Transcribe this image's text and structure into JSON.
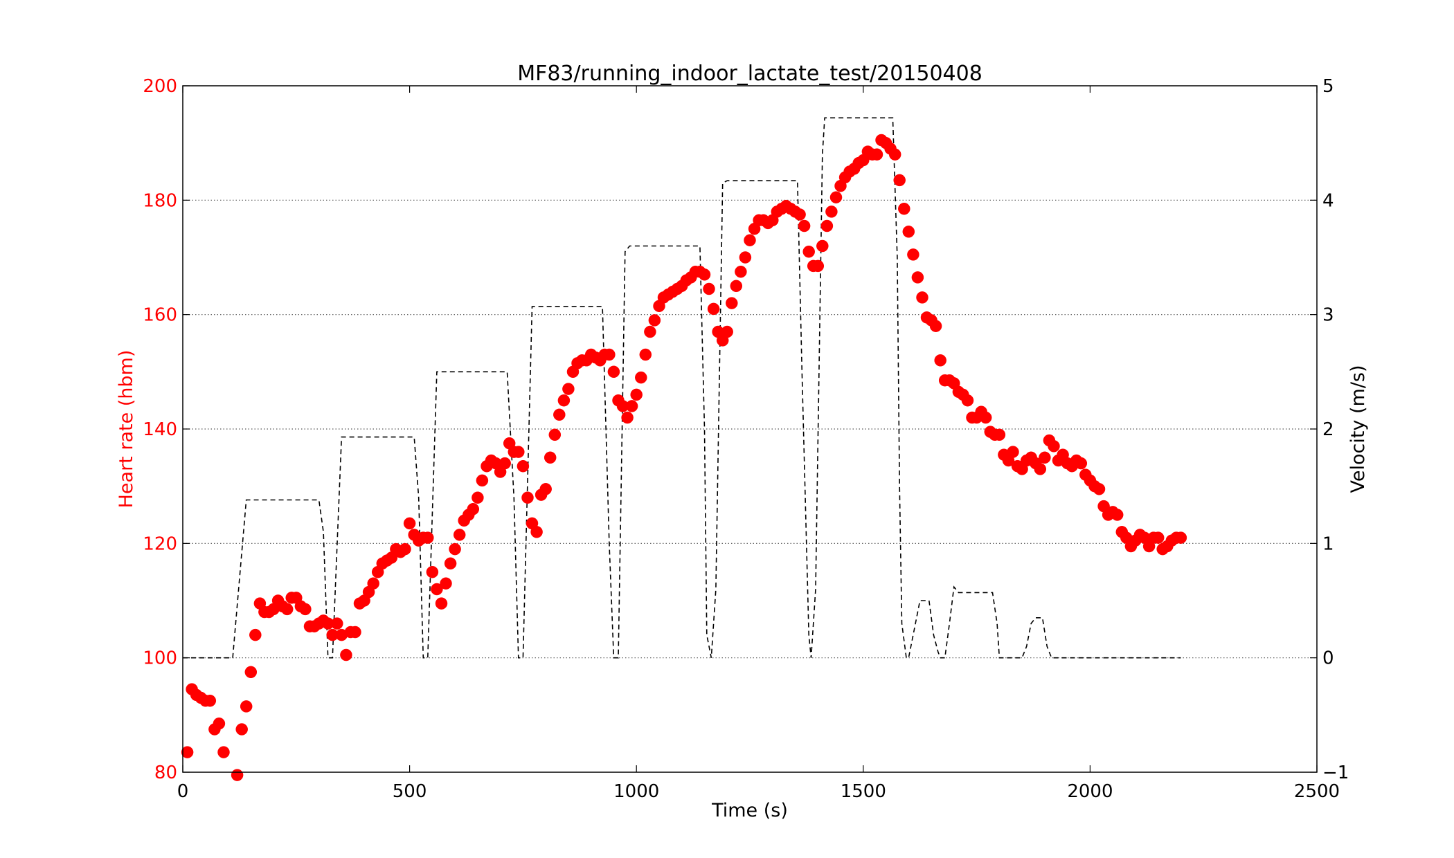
{
  "colors": {
    "heart_rate": "#ff0000",
    "velocity": "#000000",
    "grid": "#555555",
    "axis": "#000000",
    "background": "#ffffff"
  },
  "chart_data": {
    "type": "scatter",
    "title": "MF83/running_indoor_lactate_test/20150408",
    "xlabel": "Time (s)",
    "ylabel": "Heart rate (hbm)",
    "y2label": "Velocity (m/s)",
    "xlim": [
      0,
      2500
    ],
    "ylim": [
      80,
      200
    ],
    "y2lim": [
      -1,
      5
    ],
    "x_ticks": [
      {
        "value": 0,
        "label": "0"
      },
      {
        "value": 500,
        "label": "500"
      },
      {
        "value": 1000,
        "label": "1000"
      },
      {
        "value": 1500,
        "label": "1500"
      },
      {
        "value": 2000,
        "label": "2000"
      },
      {
        "value": 2500,
        "label": "2500"
      }
    ],
    "y_ticks": [
      {
        "value": 80,
        "label": "80"
      },
      {
        "value": 100,
        "label": "100"
      },
      {
        "value": 120,
        "label": "120"
      },
      {
        "value": 140,
        "label": "140"
      },
      {
        "value": 160,
        "label": "160"
      },
      {
        "value": 180,
        "label": "180"
      },
      {
        "value": 200,
        "label": "200"
      }
    ],
    "y2_ticks": [
      {
        "value": -1,
        "label": "−1"
      },
      {
        "value": 0,
        "label": "0"
      },
      {
        "value": 1,
        "label": "1"
      },
      {
        "value": 2,
        "label": "2"
      },
      {
        "value": 3,
        "label": "3"
      },
      {
        "value": 4,
        "label": "4"
      },
      {
        "value": 5,
        "label": "5"
      }
    ],
    "grid": "horizontal dotted",
    "series": [
      {
        "axis": "left",
        "style": "red circle markers",
        "points": [
          [
            10,
            83.5
          ],
          [
            20,
            94.5
          ],
          [
            30,
            93.5
          ],
          [
            40,
            93
          ],
          [
            50,
            92.5
          ],
          [
            60,
            92.5
          ],
          [
            70,
            87.5
          ],
          [
            80,
            88.5
          ],
          [
            90,
            83.5
          ],
          [
            120,
            79.5
          ],
          [
            130,
            87.5
          ],
          [
            140,
            91.5
          ],
          [
            150,
            97.5
          ],
          [
            160,
            104
          ],
          [
            170,
            109.5
          ],
          [
            180,
            108
          ],
          [
            190,
            108
          ],
          [
            200,
            108.5
          ],
          [
            210,
            110
          ],
          [
            220,
            109
          ],
          [
            230,
            108.5
          ],
          [
            240,
            110.5
          ],
          [
            250,
            110.5
          ],
          [
            260,
            109
          ],
          [
            270,
            108.5
          ],
          [
            280,
            105.5
          ],
          [
            290,
            105.5
          ],
          [
            300,
            106
          ],
          [
            310,
            106.5
          ],
          [
            320,
            106
          ],
          [
            330,
            104
          ],
          [
            340,
            106
          ],
          [
            350,
            104
          ],
          [
            360,
            100.5
          ],
          [
            370,
            104.5
          ],
          [
            380,
            104.5
          ],
          [
            390,
            109.5
          ],
          [
            400,
            110
          ],
          [
            410,
            111.5
          ],
          [
            420,
            113
          ],
          [
            430,
            115
          ],
          [
            440,
            116.5
          ],
          [
            450,
            117
          ],
          [
            460,
            117.5
          ],
          [
            470,
            119
          ],
          [
            480,
            118.5
          ],
          [
            490,
            119
          ],
          [
            500,
            123.5
          ],
          [
            510,
            121.5
          ],
          [
            520,
            120.5
          ],
          [
            530,
            121
          ],
          [
            540,
            121
          ],
          [
            550,
            115
          ],
          [
            560,
            112
          ],
          [
            570,
            109.5
          ],
          [
            580,
            113
          ],
          [
            590,
            116.5
          ],
          [
            600,
            119
          ],
          [
            610,
            121.5
          ],
          [
            620,
            124
          ],
          [
            630,
            125
          ],
          [
            640,
            126
          ],
          [
            650,
            128
          ],
          [
            660,
            131
          ],
          [
            670,
            133.5
          ],
          [
            680,
            134.5
          ],
          [
            690,
            134
          ],
          [
            700,
            132.5
          ],
          [
            710,
            134
          ],
          [
            720,
            137.5
          ],
          [
            730,
            136
          ],
          [
            740,
            136
          ],
          [
            750,
            133.5
          ],
          [
            760,
            128
          ],
          [
            770,
            123.5
          ],
          [
            780,
            122
          ],
          [
            790,
            128.5
          ],
          [
            800,
            129.5
          ],
          [
            810,
            135
          ],
          [
            820,
            139
          ],
          [
            830,
            142.5
          ],
          [
            840,
            145
          ],
          [
            850,
            147
          ],
          [
            860,
            150
          ],
          [
            870,
            151.5
          ],
          [
            880,
            152
          ],
          [
            890,
            152
          ],
          [
            900,
            153
          ],
          [
            910,
            152.5
          ],
          [
            920,
            152
          ],
          [
            930,
            153
          ],
          [
            940,
            153
          ],
          [
            950,
            150
          ],
          [
            960,
            145
          ],
          [
            970,
            144
          ],
          [
            980,
            142
          ],
          [
            990,
            144
          ],
          [
            1000,
            146
          ],
          [
            1010,
            149
          ],
          [
            1020,
            153
          ],
          [
            1030,
            157
          ],
          [
            1040,
            159
          ],
          [
            1050,
            161.5
          ],
          [
            1060,
            163
          ],
          [
            1070,
            163.5
          ],
          [
            1080,
            164
          ],
          [
            1090,
            164.5
          ],
          [
            1100,
            165
          ],
          [
            1110,
            166
          ],
          [
            1120,
            166.5
          ],
          [
            1130,
            167.5
          ],
          [
            1140,
            167.5
          ],
          [
            1150,
            167
          ],
          [
            1160,
            164.5
          ],
          [
            1170,
            161
          ],
          [
            1180,
            157
          ],
          [
            1190,
            155.5
          ],
          [
            1200,
            157
          ],
          [
            1210,
            162
          ],
          [
            1220,
            165
          ],
          [
            1230,
            167.5
          ],
          [
            1240,
            170
          ],
          [
            1250,
            173
          ],
          [
            1260,
            175
          ],
          [
            1270,
            176.5
          ],
          [
            1280,
            176.5
          ],
          [
            1290,
            176
          ],
          [
            1300,
            176.5
          ],
          [
            1310,
            178
          ],
          [
            1320,
            178.5
          ],
          [
            1330,
            179
          ],
          [
            1340,
            178.5
          ],
          [
            1350,
            178
          ],
          [
            1360,
            177.5
          ],
          [
            1370,
            175.5
          ],
          [
            1380,
            171
          ],
          [
            1390,
            168.5
          ],
          [
            1400,
            168.5
          ],
          [
            1410,
            172
          ],
          [
            1420,
            175.5
          ],
          [
            1430,
            178
          ],
          [
            1440,
            180.5
          ],
          [
            1450,
            182.5
          ],
          [
            1460,
            184
          ],
          [
            1470,
            185
          ],
          [
            1480,
            185.5
          ],
          [
            1490,
            186.5
          ],
          [
            1500,
            187
          ],
          [
            1510,
            188.5
          ],
          [
            1520,
            188
          ],
          [
            1530,
            188
          ],
          [
            1540,
            190.5
          ],
          [
            1550,
            190
          ],
          [
            1560,
            189
          ],
          [
            1570,
            188
          ],
          [
            1580,
            183.5
          ],
          [
            1590,
            178.5
          ],
          [
            1600,
            174.5
          ],
          [
            1610,
            170.5
          ],
          [
            1620,
            166.5
          ],
          [
            1630,
            163
          ],
          [
            1640,
            159.5
          ],
          [
            1650,
            159
          ],
          [
            1660,
            158
          ],
          [
            1670,
            152
          ],
          [
            1680,
            148.5
          ],
          [
            1690,
            148.5
          ],
          [
            1700,
            148
          ],
          [
            1710,
            146.5
          ],
          [
            1720,
            146
          ],
          [
            1730,
            145
          ],
          [
            1740,
            142
          ],
          [
            1750,
            142
          ],
          [
            1760,
            143
          ],
          [
            1770,
            142
          ],
          [
            1780,
            139.5
          ],
          [
            1790,
            139
          ],
          [
            1800,
            139
          ],
          [
            1810,
            135.5
          ],
          [
            1820,
            134.5
          ],
          [
            1830,
            136
          ],
          [
            1840,
            133.5
          ],
          [
            1850,
            133
          ],
          [
            1860,
            134.5
          ],
          [
            1870,
            135
          ],
          [
            1880,
            134
          ],
          [
            1890,
            133
          ],
          [
            1900,
            135
          ],
          [
            1910,
            138
          ],
          [
            1920,
            137
          ],
          [
            1930,
            134.5
          ],
          [
            1940,
            135.5
          ],
          [
            1950,
            134
          ],
          [
            1960,
            133.5
          ],
          [
            1970,
            134.5
          ],
          [
            1980,
            134
          ],
          [
            1990,
            132
          ],
          [
            2000,
            131
          ],
          [
            2010,
            130
          ],
          [
            2020,
            129.5
          ],
          [
            2030,
            126.5
          ],
          [
            2040,
            125
          ],
          [
            2050,
            125.5
          ],
          [
            2060,
            125
          ],
          [
            2070,
            122
          ],
          [
            2080,
            121
          ],
          [
            2090,
            119.5
          ],
          [
            2100,
            120.5
          ],
          [
            2110,
            121.5
          ],
          [
            2120,
            121
          ],
          [
            2130,
            119.5
          ],
          [
            2140,
            121
          ],
          [
            2150,
            121
          ],
          [
            2160,
            119
          ],
          [
            2170,
            119.5
          ],
          [
            2180,
            120.5
          ],
          [
            2190,
            121
          ],
          [
            2200,
            121
          ]
        ]
      },
      {
        "axis": "right",
        "style": "black dashed line",
        "points": [
          [
            0,
            0
          ],
          [
            110,
            0
          ],
          [
            140,
            1.38
          ],
          [
            300,
            1.38
          ],
          [
            310,
            1.1
          ],
          [
            320,
            0
          ],
          [
            330,
            0
          ],
          [
            350,
            1.93
          ],
          [
            510,
            1.93
          ],
          [
            520,
            1.4
          ],
          [
            530,
            0
          ],
          [
            540,
            0
          ],
          [
            560,
            2.5
          ],
          [
            715,
            2.5
          ],
          [
            730,
            1.4
          ],
          [
            740,
            0
          ],
          [
            750,
            0
          ],
          [
            770,
            3.07
          ],
          [
            925,
            3.07
          ],
          [
            940,
            1.0
          ],
          [
            950,
            0
          ],
          [
            960,
            0
          ],
          [
            975,
            3.55
          ],
          [
            985,
            3.6
          ],
          [
            1140,
            3.6
          ],
          [
            1150,
            2.0
          ],
          [
            1155,
            0.2
          ],
          [
            1165,
            0
          ],
          [
            1175,
            0.6
          ],
          [
            1190,
            4.15
          ],
          [
            1200,
            4.17
          ],
          [
            1355,
            4.17
          ],
          [
            1365,
            2.5
          ],
          [
            1380,
            0.2
          ],
          [
            1385,
            0
          ],
          [
            1395,
            0.6
          ],
          [
            1410,
            4.4
          ],
          [
            1415,
            4.72
          ],
          [
            1565,
            4.72
          ],
          [
            1575,
            3.5
          ],
          [
            1580,
            1.5
          ],
          [
            1585,
            0.3
          ],
          [
            1595,
            0
          ],
          [
            1600,
            0
          ],
          [
            1610,
            0.2
          ],
          [
            1625,
            0.5
          ],
          [
            1645,
            0.5
          ],
          [
            1655,
            0.2
          ],
          [
            1665,
            0.05
          ],
          [
            1670,
            0
          ],
          [
            1680,
            0
          ],
          [
            1690,
            0.3
          ],
          [
            1700,
            0.62
          ],
          [
            1710,
            0.57
          ],
          [
            1785,
            0.57
          ],
          [
            1795,
            0.3
          ],
          [
            1800,
            0
          ],
          [
            1850,
            0
          ],
          [
            1860,
            0.1
          ],
          [
            1870,
            0.3
          ],
          [
            1880,
            0.35
          ],
          [
            1895,
            0.35
          ],
          [
            1905,
            0.1
          ],
          [
            1915,
            0
          ],
          [
            2200,
            0
          ]
        ]
      }
    ]
  }
}
